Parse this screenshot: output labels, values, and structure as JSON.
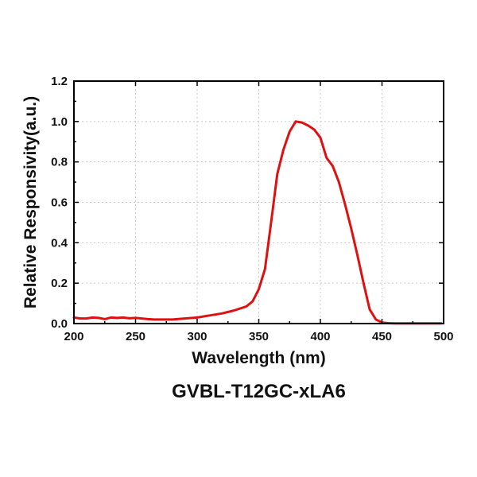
{
  "chart_data": {
    "type": "line",
    "title": "GVBL-T12GC-xLA6",
    "xlabel": "Wavelength (nm)",
    "ylabel": "Relative Responsivity(a.u.)",
    "xlim": [
      200,
      500
    ],
    "ylim": [
      0,
      1.2
    ],
    "xticks": [
      "200",
      "250",
      "300",
      "350",
      "400",
      "450",
      "500"
    ],
    "yticks": [
      "0.0",
      "0.2",
      "0.4",
      "0.6",
      "0.8",
      "1.0",
      "1.2"
    ],
    "grid": true,
    "series": [
      {
        "name": "Relative Responsivity",
        "color": "#e01010",
        "x": [
          200,
          205,
          210,
          215,
          220,
          225,
          230,
          235,
          240,
          245,
          250,
          255,
          260,
          265,
          270,
          280,
          290,
          300,
          310,
          320,
          330,
          340,
          345,
          350,
          355,
          360,
          365,
          370,
          375,
          380,
          385,
          390,
          395,
          400,
          405,
          410,
          415,
          420,
          425,
          430,
          435,
          440,
          445,
          450,
          455,
          460,
          470,
          480,
          490,
          498
        ],
        "y": [
          0.03,
          0.025,
          0.025,
          0.03,
          0.028,
          0.022,
          0.03,
          0.028,
          0.03,
          0.026,
          0.028,
          0.025,
          0.022,
          0.02,
          0.02,
          0.02,
          0.025,
          0.03,
          0.04,
          0.05,
          0.065,
          0.085,
          0.11,
          0.17,
          0.27,
          0.5,
          0.74,
          0.86,
          0.95,
          1.0,
          0.995,
          0.98,
          0.96,
          0.92,
          0.82,
          0.78,
          0.7,
          0.59,
          0.47,
          0.34,
          0.2,
          0.07,
          0.02,
          0.005,
          0.002,
          0.001,
          0.001,
          0.001,
          0.001,
          0.001
        ]
      }
    ]
  }
}
